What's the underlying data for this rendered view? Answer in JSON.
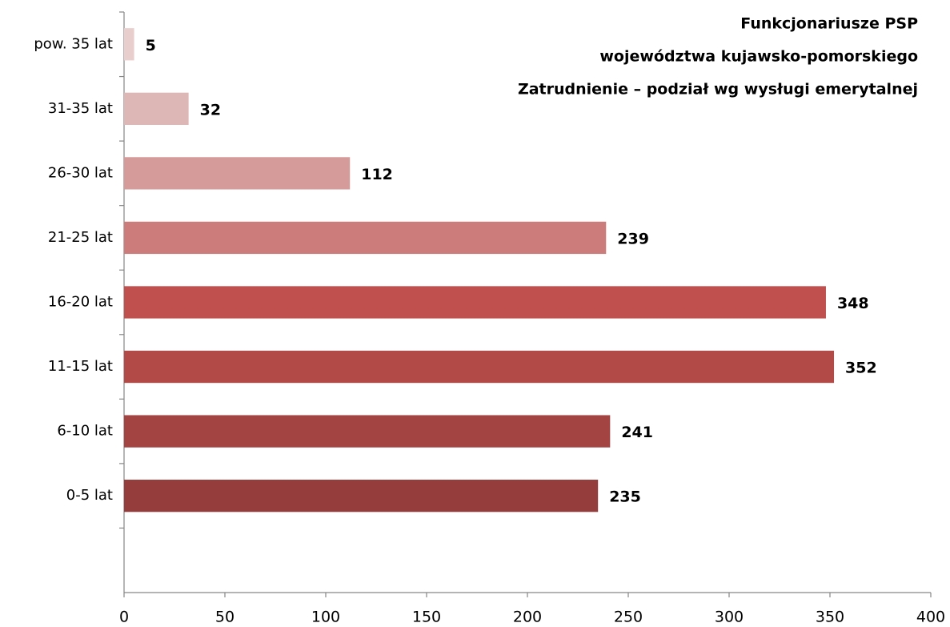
{
  "chart_data": {
    "type": "bar",
    "orientation": "horizontal",
    "title": [
      "Funkcjonariusze PSP",
      "województwa kujawsko-pomorskiego",
      "Zatrudnienie – podział wg wysługi emerytalnej"
    ],
    "categories": [
      null,
      "0-5 lat",
      "6-10 lat",
      "11-15 lat",
      "16-20 lat",
      "21-25 lat",
      "26-30 lat",
      "31-35 lat",
      "pow. 35 lat"
    ],
    "values": [
      null,
      235,
      241,
      352,
      348,
      239,
      112,
      32,
      5
    ],
    "colors": [
      null,
      "#953d3c",
      "#a34443",
      "#b24a48",
      "#c0504d",
      "#cb7c7b",
      "#d59b9a",
      "#ddb7b6",
      "#e8cfce"
    ],
    "xlim": [
      0,
      400
    ],
    "xticks": [
      0,
      50,
      100,
      150,
      200,
      250,
      300,
      350,
      400
    ],
    "grid": false
  }
}
